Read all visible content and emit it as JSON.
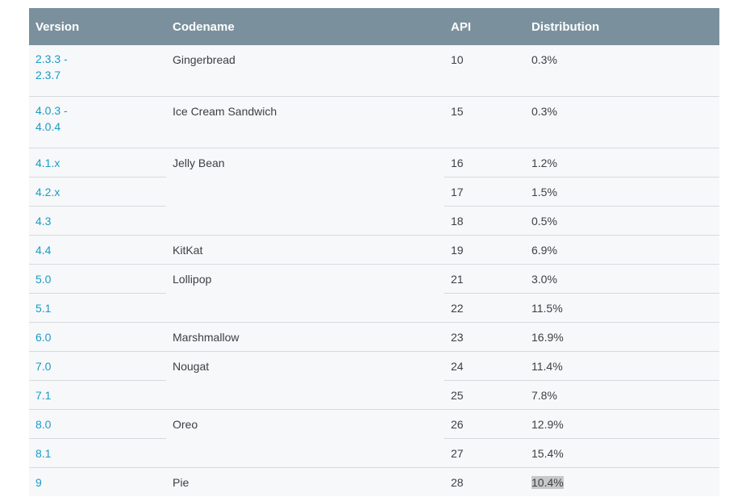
{
  "table": {
    "headers": {
      "version": "Version",
      "codename": "Codename",
      "api": "API",
      "distribution": "Distribution"
    },
    "rows": [
      {
        "version": "2.3.3 - 2.3.7",
        "codename": "Gingerbread",
        "api": "10",
        "distribution": "0.3%"
      },
      {
        "version": "4.0.3 - 4.0.4",
        "codename": "Ice Cream Sandwich",
        "api": "15",
        "distribution": "0.3%"
      },
      {
        "version": "4.1.x",
        "codename": "Jelly Bean",
        "api": "16",
        "distribution": "1.2%"
      },
      {
        "version": "4.2.x",
        "api": "17",
        "distribution": "1.5%"
      },
      {
        "version": "4.3",
        "api": "18",
        "distribution": "0.5%"
      },
      {
        "version": "4.4",
        "codename": "KitKat",
        "api": "19",
        "distribution": "6.9%"
      },
      {
        "version": "5.0",
        "codename": "Lollipop",
        "api": "21",
        "distribution": "3.0%"
      },
      {
        "version": "5.1",
        "api": "22",
        "distribution": "11.5%"
      },
      {
        "version": "6.0",
        "codename": "Marshmallow",
        "api": "23",
        "distribution": "16.9%"
      },
      {
        "version": "7.0",
        "codename": "Nougat",
        "api": "24",
        "distribution": "11.4%"
      },
      {
        "version": "7.1",
        "api": "25",
        "distribution": "7.8%"
      },
      {
        "version": "8.0",
        "codename": "Oreo",
        "api": "26",
        "distribution": "12.9%"
      },
      {
        "version": "8.1",
        "api": "27",
        "distribution": "15.4%"
      },
      {
        "version": "9",
        "codename": "Pie",
        "api": "28",
        "distribution": "10.4%"
      }
    ],
    "colors": {
      "header_bg": "#7b909d",
      "link": "#1a9bc4",
      "row_bg": "#f7f8fa",
      "highlight": "#c8c8c8"
    }
  }
}
